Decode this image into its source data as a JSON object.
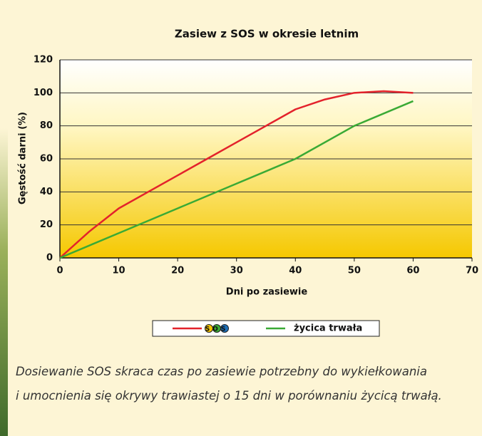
{
  "chart_data": {
    "type": "line",
    "title": "Zasiew z SOS w okresie letnim",
    "x_label": "Dni po zasiewie",
    "y_label": "Gęstość darni (%)",
    "xlim": [
      0,
      70
    ],
    "xticks": [
      0,
      10,
      20,
      30,
      40,
      50,
      60,
      70
    ],
    "ylim": [
      0,
      120
    ],
    "yticks": [
      0,
      20,
      40,
      60,
      80,
      100,
      120
    ],
    "grid": true,
    "series": [
      {
        "name": "SOS",
        "color": "#e3222b",
        "x": [
          0,
          5,
          10,
          15,
          20,
          25,
          30,
          35,
          40,
          45,
          50,
          55,
          60
        ],
        "values": [
          0,
          16,
          30,
          40,
          50,
          60,
          70,
          80,
          90,
          96,
          100,
          101,
          100
        ]
      },
      {
        "name": "życica trwała",
        "color": "#3aaa35",
        "x": [
          0,
          10,
          20,
          30,
          40,
          50,
          60
        ],
        "values": [
          0,
          15,
          30,
          45,
          60,
          80,
          95
        ]
      }
    ]
  },
  "caption": [
    "Dosiewanie SOS skraca czas po zasiewie potrzebny do wykiełkowania",
    "i umocnienia się okrywy trawiastej o 15 dni w porównaniu życicą trwałą."
  ]
}
